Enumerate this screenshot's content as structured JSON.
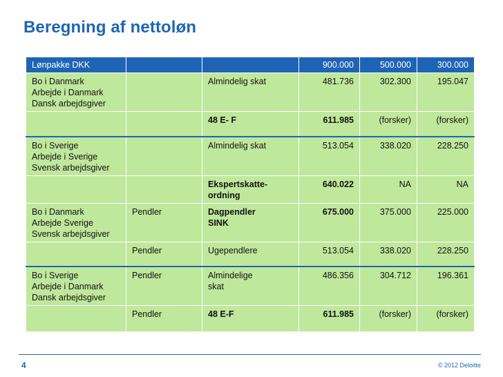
{
  "title": "Beregning af nettoløn",
  "table": {
    "header": [
      "Lønpakke DKK",
      "",
      "",
      "900.000",
      "500.000",
      "300.000"
    ],
    "rows": [
      {
        "c1": [
          "Bo i Danmark",
          "Arbejde i Danmark",
          "Dansk arbejdsgiver"
        ],
        "c2": "",
        "c3": [
          "Almindelig skat"
        ],
        "v1": "481.736",
        "v2": "302.300",
        "v3": "195.047"
      },
      {
        "c1": [],
        "c2": "",
        "c3": [
          "48 E- F"
        ],
        "v1": "611.985",
        "v2": "(forsker)",
        "v3": "(forsker)"
      },
      {
        "c1": [
          "Bo i Sverige",
          "Arbejde i Sverige",
          "Svensk arbejdsgiver"
        ],
        "c2": "",
        "c3": [
          "Almindelig skat"
        ],
        "v1": "513.054",
        "v2": "338.020",
        "v3": "228.250"
      },
      {
        "c1": [],
        "c2": "",
        "c3": [
          "Ekspertskatte-",
          "ordning"
        ],
        "v1": "640.022",
        "v2": "NA",
        "v3": "NA"
      },
      {
        "c1": [
          "Bo i Danmark",
          "Arbejde Sverige",
          "Svensk arbejdsgiver"
        ],
        "c2": "Pendler",
        "c3": [
          "Dagpendler",
          "SINK"
        ],
        "v1": "675.000",
        "v2": "375.000",
        "v3": "225.000"
      },
      {
        "c1": [],
        "c2": "Pendler",
        "c3": [
          "Ugependlere"
        ],
        "v1": "513.054",
        "v2": "338.020",
        "v3": "228.250"
      },
      {
        "c1": [
          "Bo i Sverige",
          "Arbejde i Danmark",
          "Dansk arbejdsgiver"
        ],
        "c2": "Pendler",
        "c3": [
          "Almindelige",
          "skat"
        ],
        "v1": "486.356",
        "v2": "304.712",
        "v3": "196.361"
      },
      {
        "c1": [],
        "c2": "Pendler",
        "c3": [
          "48 E-F"
        ],
        "v1": "611.985",
        "v2": "(forsker)",
        "v3": "(forsker)"
      }
    ]
  },
  "footer": {
    "page_number": "4",
    "copyright": "© 2012 Deloitte"
  },
  "colors": {
    "accent": "#1f64b4",
    "cell_fill": "#bfe89c",
    "title": "#1f64b4"
  }
}
